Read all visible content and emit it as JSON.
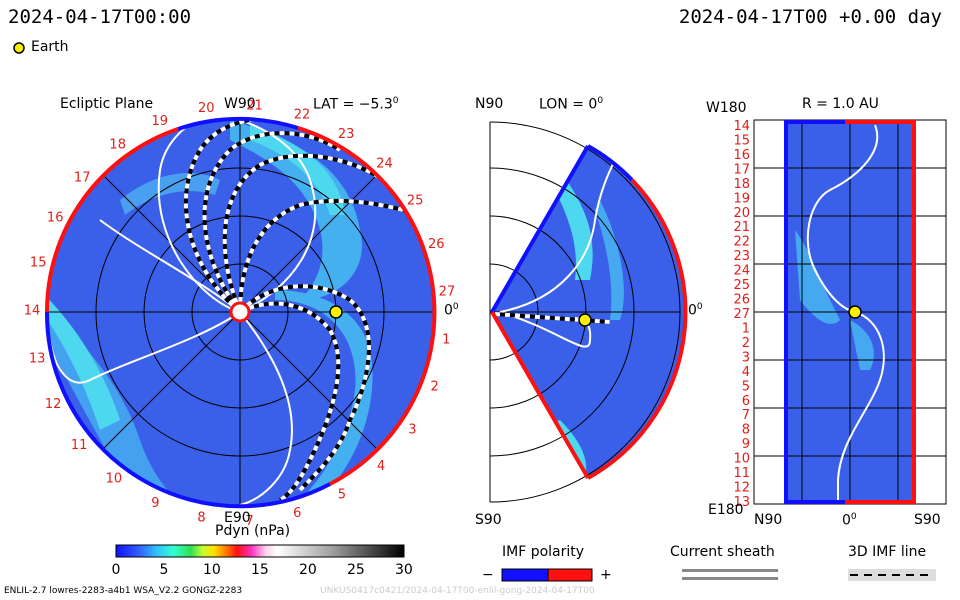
{
  "header": {
    "left_time": "2024-04-17T00:00",
    "right_time": "2024-04-17T00 +0.00 day"
  },
  "legend": {
    "earth_label": "Earth"
  },
  "ecliptic": {
    "title": "Ecliptic Plane",
    "lat": "LAT = −5.3",
    "lat_sup": "0",
    "w_label": "W90",
    "e_label": "E90",
    "zero": "0",
    "zero_sup": "0",
    "carrington": [
      "1",
      "2",
      "3",
      "4",
      "5",
      "6",
      "7",
      "8",
      "9",
      "10",
      "11",
      "12",
      "13",
      "14",
      "15",
      "16",
      "17",
      "18",
      "19",
      "20",
      "21",
      "22",
      "23",
      "24",
      "25",
      "26",
      "27"
    ]
  },
  "meridional": {
    "n_label": "N90",
    "s_label": "S90",
    "lon": "LON = 0",
    "lon_sup": "0",
    "zero": "0",
    "zero_sup": "0"
  },
  "radial": {
    "w_label": "W180",
    "e_label": "E180",
    "r_label": "R = 1.0 AU",
    "x_labels": [
      "N90",
      "0",
      "S90"
    ],
    "x_zero_sup": "0",
    "rows": [
      "14",
      "15",
      "16",
      "17",
      "18",
      "19",
      "20",
      "21",
      "22",
      "23",
      "24",
      "25",
      "26",
      "27",
      "1",
      "2",
      "3",
      "4",
      "5",
      "6",
      "7",
      "8",
      "9",
      "10",
      "11",
      "12",
      "13"
    ]
  },
  "colorbar": {
    "title": "Pdyn (nPa)",
    "ticks": [
      "0",
      "5",
      "10",
      "15",
      "20",
      "25",
      "30"
    ]
  },
  "keys": {
    "imf_polarity": "IMF polarity",
    "minus": "−",
    "plus": "+",
    "current_sheath": "Current sheath",
    "imf_line": "3D IMF line"
  },
  "footer": {
    "model": "ENLIL-2.7 lowres-2283-a4b1 WSA_V2.2 GONGZ-2283",
    "watermark": "UNKUS0417c0421/2024-04-17T00-enlil-gong-2024-04-17T00"
  },
  "colors": {
    "bg_blue": "#3a5fe8",
    "cyan": "#3ec8f0",
    "polarity_neg": "#1010ff",
    "polarity_pos": "#ff1010",
    "carrington_text": "#e0201a",
    "earth": "#ffee00"
  }
}
